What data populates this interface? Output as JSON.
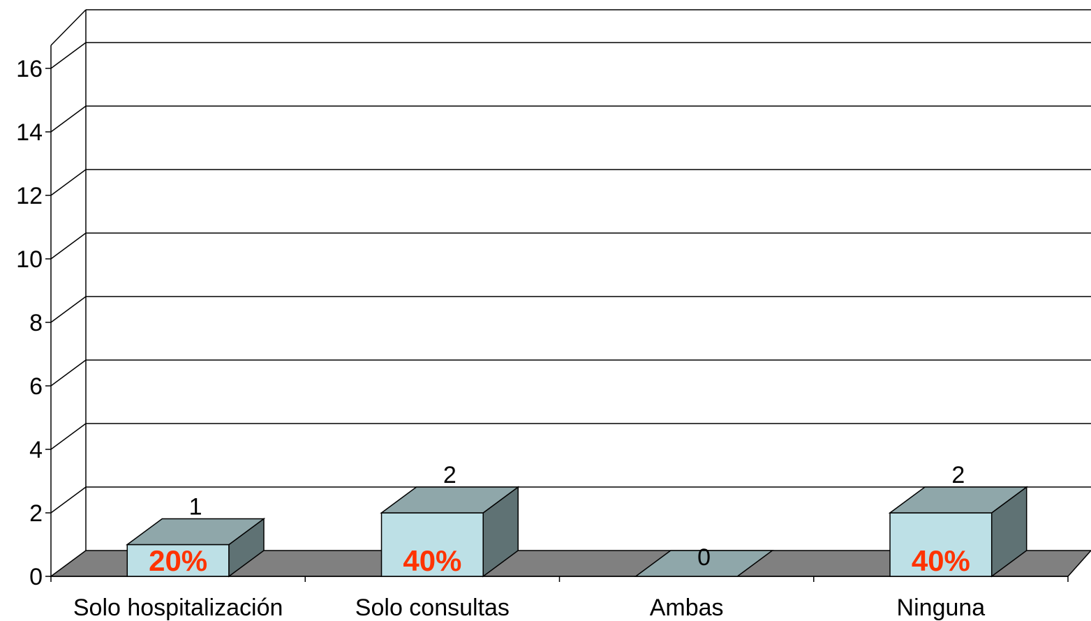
{
  "chart_data": {
    "type": "bar",
    "style": "3d-column",
    "categories": [
      "Solo hospitalización",
      "Solo consultas",
      "Ambas",
      "Ninguna"
    ],
    "values": [
      1,
      2,
      0,
      2
    ],
    "percent_labels": [
      "20%",
      "40%",
      "",
      "40%"
    ],
    "ylim": [
      0,
      16
    ],
    "yticks": [
      0,
      2,
      4,
      6,
      8,
      10,
      12,
      14,
      16
    ],
    "grid": true,
    "legend": "none",
    "colors": {
      "bar_front": "#bde0e6",
      "bar_top": "#8fa7aa",
      "bar_side": "#5f7274",
      "floor": "#808080",
      "percent_text": "#ff3300",
      "grid": "#000000"
    }
  }
}
